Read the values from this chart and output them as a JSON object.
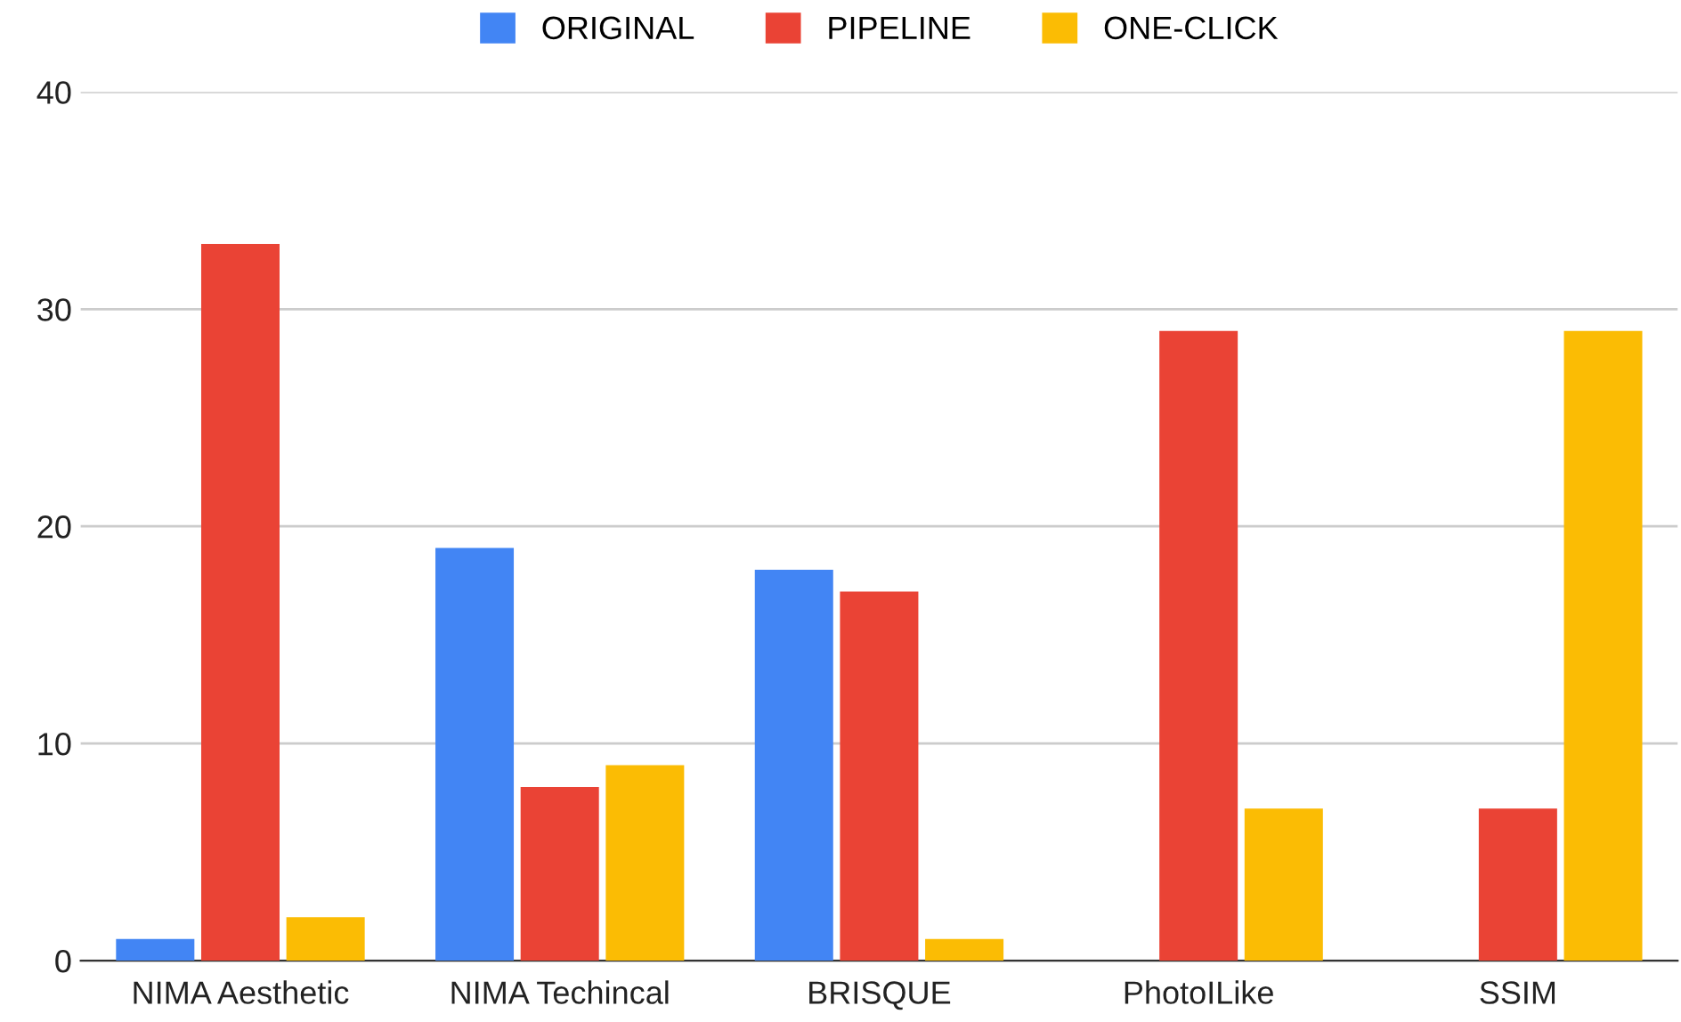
{
  "chart_data": {
    "type": "bar",
    "categories": [
      "NIMA Aesthetic",
      "NIMA Techincal",
      "BRISQUE",
      "PhotoILike",
      "SSIM"
    ],
    "series": [
      {
        "name": "ORIGINAL",
        "color": "#4285f4",
        "values": [
          1,
          19,
          18,
          null,
          null
        ]
      },
      {
        "name": "PIPELINE",
        "color": "#ea4335",
        "values": [
          33,
          8,
          17,
          29,
          7
        ]
      },
      {
        "name": "ONE-CLICK",
        "color": "#fbbc04",
        "values": [
          2,
          9,
          1,
          7,
          29
        ]
      }
    ],
    "ylim": [
      0,
      40
    ],
    "yticks": [
      0,
      10,
      20,
      30,
      40
    ],
    "grid": "y",
    "legend": "top"
  }
}
